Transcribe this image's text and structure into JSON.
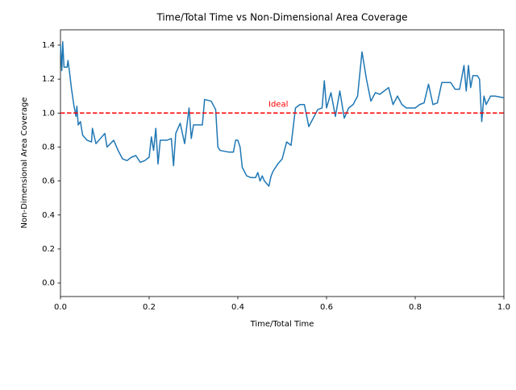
{
  "chart_data": {
    "type": "line",
    "title": "Time/Total Time vs Non-Dimensional Area Coverage",
    "x_label": "Time/Total Time",
    "y_label": "Non-Dimensional Area Coverage",
    "color": "#1f77b4",
    "x": [
      0.0,
      0.003,
      0.005,
      0.008,
      0.015,
      0.017,
      0.02,
      0.025,
      0.03,
      0.035,
      0.037,
      0.04,
      0.045,
      0.05,
      0.06,
      0.07,
      0.072,
      0.08,
      0.09,
      0.1,
      0.105,
      0.12,
      0.13,
      0.14,
      0.15,
      0.16,
      0.17,
      0.18,
      0.19,
      0.2,
      0.205,
      0.21,
      0.215,
      0.22,
      0.225,
      0.24,
      0.25,
      0.255,
      0.26,
      0.27,
      0.28,
      0.29,
      0.295,
      0.3,
      0.32,
      0.325,
      0.34,
      0.35,
      0.355,
      0.36,
      0.38,
      0.39,
      0.395,
      0.4,
      0.405,
      0.41,
      0.42,
      0.43,
      0.44,
      0.445,
      0.45,
      0.455,
      0.46,
      0.47,
      0.475,
      0.48,
      0.49,
      0.5,
      0.51,
      0.52,
      0.53,
      0.54,
      0.55,
      0.56,
      0.57,
      0.58,
      0.59,
      0.595,
      0.6,
      0.61,
      0.62,
      0.63,
      0.64,
      0.65,
      0.66,
      0.67,
      0.68,
      0.69,
      0.7,
      0.71,
      0.72,
      0.73,
      0.74,
      0.75,
      0.76,
      0.77,
      0.78,
      0.8,
      0.81,
      0.82,
      0.83,
      0.84,
      0.85,
      0.86,
      0.88,
      0.89,
      0.9,
      0.91,
      0.915,
      0.92,
      0.925,
      0.93,
      0.94,
      0.945,
      0.95,
      0.955,
      0.96,
      0.97,
      0.98,
      1.0
    ],
    "values": [
      1.4,
      1.25,
      1.42,
      1.27,
      1.27,
      1.31,
      1.25,
      1.14,
      1.05,
      0.98,
      1.04,
      0.93,
      0.95,
      0.87,
      0.84,
      0.83,
      0.91,
      0.82,
      0.85,
      0.88,
      0.8,
      0.84,
      0.78,
      0.73,
      0.72,
      0.74,
      0.75,
      0.71,
      0.72,
      0.74,
      0.86,
      0.78,
      0.91,
      0.7,
      0.84,
      0.84,
      0.85,
      0.69,
      0.88,
      0.94,
      0.82,
      1.03,
      0.85,
      0.93,
      0.93,
      1.08,
      1.07,
      1.02,
      0.8,
      0.78,
      0.77,
      0.77,
      0.84,
      0.84,
      0.8,
      0.68,
      0.63,
      0.62,
      0.62,
      0.65,
      0.6,
      0.63,
      0.6,
      0.57,
      0.63,
      0.66,
      0.7,
      0.73,
      0.83,
      0.81,
      1.03,
      1.05,
      1.05,
      0.92,
      0.97,
      1.02,
      1.03,
      1.19,
      1.03,
      1.12,
      0.98,
      1.13,
      0.97,
      1.03,
      1.05,
      1.1,
      1.36,
      1.2,
      1.07,
      1.12,
      1.11,
      1.13,
      1.15,
      1.05,
      1.1,
      1.05,
      1.03,
      1.03,
      1.05,
      1.06,
      1.17,
      1.05,
      1.06,
      1.18,
      1.18,
      1.14,
      1.14,
      1.28,
      1.13,
      1.28,
      1.15,
      1.22,
      1.22,
      1.2,
      0.95,
      1.1,
      1.05,
      1.1,
      1.1,
      1.09
    ],
    "reference_line": {
      "value": 1.0,
      "color": "red",
      "dashed": true,
      "label": "Ideal"
    },
    "xlim": [
      0,
      1
    ],
    "ylim": [
      -0.08,
      1.49
    ],
    "xticks": [
      {
        "value": 0,
        "label": "0.0"
      },
      0.2,
      0.4,
      0.6,
      0.8,
      {
        "value": 1,
        "label": "1.0"
      }
    ],
    "yticks": [
      {
        "value": 0,
        "label": "0.0"
      },
      0.2,
      0.4,
      0.6,
      0.8,
      {
        "value": 1,
        "label": "1.0"
      },
      1.2,
      1.4
    ]
  }
}
